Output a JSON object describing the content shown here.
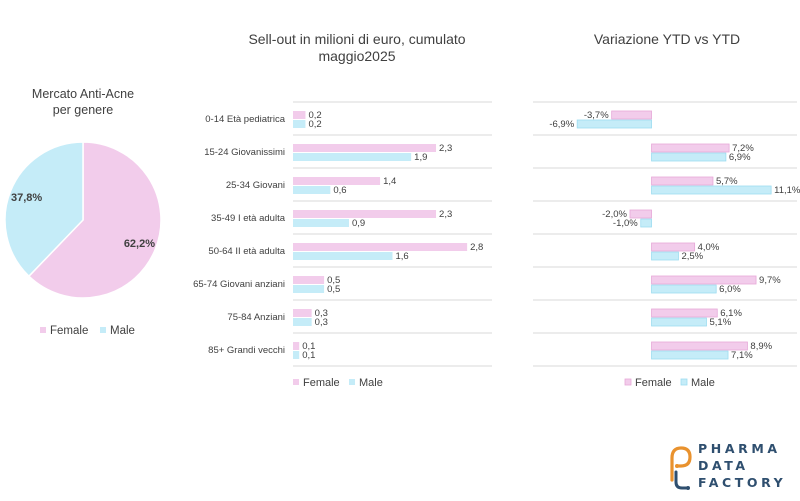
{
  "colors": {
    "female": "#F2CCEB",
    "male": "#C5ECF8",
    "female_stroke": "#E6A8D8",
    "male_stroke": "#9DDCF0",
    "grid": "#D9D9D9",
    "text": "#404040",
    "logo_blue": "#2F4F6F",
    "logo_orange": "#E9922E"
  },
  "chart_data": [
    {
      "type": "pie",
      "title": "Mercato Anti-Acne per genere",
      "title_lines": [
        "Mercato Anti-Acne",
        "per genere"
      ],
      "slices": [
        {
          "name": "Female",
          "value": 62.2,
          "label": "62,2%"
        },
        {
          "name": "Male",
          "value": 37.8,
          "label": "37,8%"
        }
      ],
      "legend": [
        "Female",
        "Male"
      ],
      "legend_position": "bottom"
    },
    {
      "type": "bar",
      "orientation": "horizontal",
      "title": "Sell-out in milioni  di euro, cumulato maggio2025",
      "title_lines": [
        "Sell-out in milioni  di euro, cumulato",
        "maggio2025"
      ],
      "categories": [
        "0-14 Età pediatrica",
        "15-24 Giovanissimi",
        "25-34 Giovani",
        "35-49 I età adulta",
        "50-64 II età adulta",
        "65-74 Giovani anziani",
        "75-84 Anziani",
        "85+ Grandi vecchi"
      ],
      "series": [
        {
          "name": "Female",
          "values": [
            0.2,
            2.3,
            1.4,
            2.3,
            2.8,
            0.5,
            0.3,
            0.1
          ],
          "labels": [
            "0,2",
            "2,3",
            "1,4",
            "2,3",
            "2,8",
            "0,5",
            "0,3",
            "0,1"
          ]
        },
        {
          "name": "Male",
          "values": [
            0.2,
            1.9,
            0.6,
            0.9,
            1.6,
            0.5,
            0.3,
            0.1
          ],
          "labels": [
            "0,2",
            "1,9",
            "0,6",
            "0,9",
            "1,6",
            "0,5",
            "0,3",
            "0,1"
          ]
        }
      ],
      "xlim": [
        0,
        3.2
      ],
      "legend_position": "bottom",
      "grid": "horizontal separators"
    },
    {
      "type": "bar",
      "orientation": "horizontal",
      "title": "Variazione YTD vs YTD",
      "title_lines": [
        "Variazione YTD vs YTD"
      ],
      "categories": [
        "0-14 Età pediatrica",
        "15-24 Giovanissimi",
        "25-34 Giovani",
        "35-49 I età adulta",
        "50-64 II età adulta",
        "65-74 Giovani anziani",
        "75-84 Anziani",
        "85+ Grandi vecchi"
      ],
      "series": [
        {
          "name": "Female",
          "values": [
            -3.7,
            7.2,
            5.7,
            -2.0,
            4.0,
            9.7,
            6.1,
            8.9
          ],
          "labels": [
            "-3,7%",
            "7,2%",
            "5,7%",
            "-2,0%",
            "4,0%",
            "9,7%",
            "6,1%",
            "8,9%"
          ]
        },
        {
          "name": "Male",
          "values": [
            -6.9,
            6.9,
            11.1,
            -1.0,
            2.5,
            6.0,
            5.1,
            7.1
          ],
          "labels": [
            "-6,9%",
            "6,9%",
            "11,1%",
            "-1,0%",
            "2,5%",
            "6,0%",
            "5,1%",
            "7,1%"
          ]
        }
      ],
      "xlim": [
        -11,
        13.5
      ],
      "legend_position": "bottom",
      "grid": "horizontal separators"
    }
  ],
  "logo": {
    "lines": [
      "PHARMA",
      "DATA",
      "FACTORY"
    ]
  }
}
